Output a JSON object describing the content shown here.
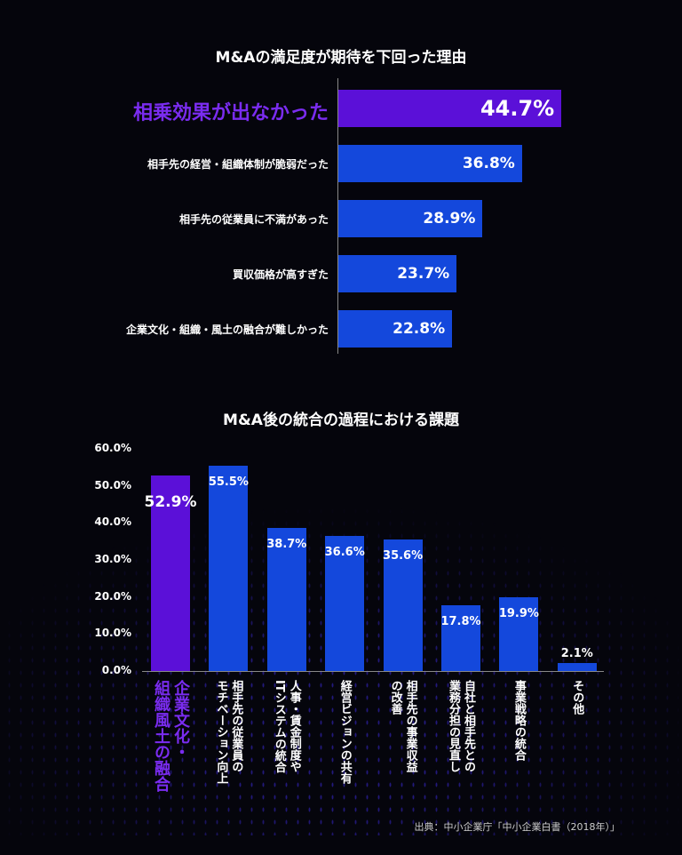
{
  "colors": {
    "highlight": "#5b10d8",
    "bar": "#1448dc",
    "highlight_text": "#7a2cf0",
    "background": "#05050c"
  },
  "chart_data": [
    {
      "type": "bar",
      "orientation": "horizontal",
      "title": "M&Aの満足度が期待を下回った理由",
      "categories": [
        "相乗効果が出なかった",
        "相手先の経営・組織体制が脆弱だった",
        "相手先の従業員に不満があった",
        "買収価格が高すぎた",
        "企業文化・組織・風土の融合が難しかった"
      ],
      "values": [
        44.7,
        36.8,
        28.9,
        23.7,
        22.8
      ],
      "value_labels": [
        "44.7%",
        "36.8%",
        "28.9%",
        "23.7%",
        "22.8%"
      ],
      "highlight_index": 0
    },
    {
      "type": "bar",
      "orientation": "vertical",
      "title": "M&A後の統合の過程における課題",
      "categories": [
        "企業文化・\n組織風土の融合",
        "相手先の従業員の\nモチベーション向上",
        "人事・賃金制度や\nITシステムの統合",
        "経営ビジョンの共有",
        "相手先の事業収益\nの改善",
        "自社と相手先との\n業務分担の見直し",
        "事業戦略の統合",
        "その他"
      ],
      "values": [
        52.9,
        55.5,
        38.7,
        36.6,
        35.6,
        17.8,
        19.9,
        2.1
      ],
      "value_labels": [
        "52.9%",
        "55.5%",
        "38.7%",
        "36.6%",
        "35.6%",
        "17.8%",
        "19.9%",
        "2.1%"
      ],
      "ylim": [
        0,
        60
      ],
      "yticks": [
        "0.0%",
        "10.0%",
        "20.0%",
        "30.0%",
        "40.0%",
        "50.0%",
        "60.0%"
      ],
      "highlight_index": 0
    }
  ],
  "source": "出典：中小企業庁「中小企業白書（2018年）」"
}
